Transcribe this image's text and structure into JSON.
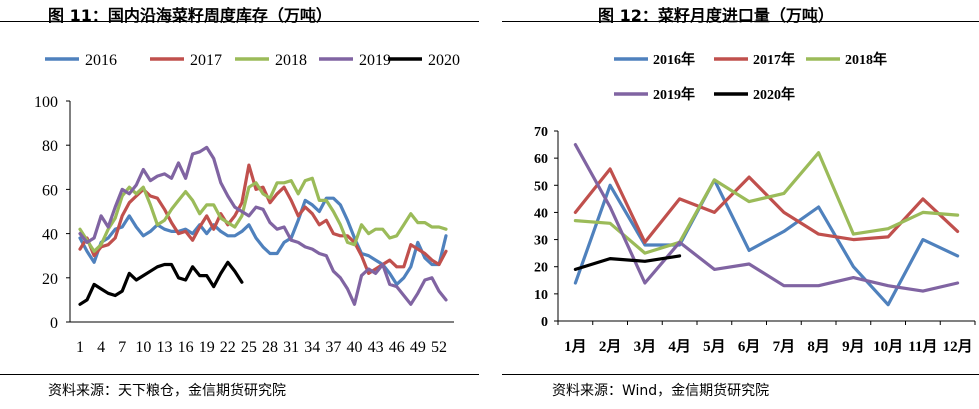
{
  "charts": [
    {
      "title": "图 11：国内沿海菜籽周度库存（万吨）",
      "source": "资料来源：天下粮仓，金信期货研究院"
    },
    {
      "title": "图 12：菜籽月度进口量（万吨）",
      "source": "资料来源：Wind，金信期货研究院"
    }
  ],
  "chart_data": [
    {
      "type": "line",
      "title": "",
      "xlabel": "",
      "ylabel": "",
      "ylim": [
        0,
        100
      ],
      "yticks": [
        0,
        20,
        40,
        60,
        80,
        100
      ],
      "x": [
        1,
        2,
        3,
        4,
        5,
        6,
        7,
        8,
        9,
        10,
        11,
        12,
        13,
        14,
        15,
        16,
        17,
        18,
        19,
        20,
        21,
        22,
        23,
        24,
        25,
        26,
        27,
        28,
        29,
        30,
        31,
        32,
        33,
        34,
        35,
        36,
        37,
        38,
        39,
        40,
        41,
        42,
        43,
        44,
        45,
        46,
        47,
        48,
        49,
        50,
        51,
        52,
        53
      ],
      "xtick_labels": [
        "1",
        "4",
        "7",
        "10",
        "13",
        "16",
        "19",
        "22",
        "25",
        "28",
        "31",
        "34",
        "37",
        "40",
        "43",
        "46",
        "49",
        "52"
      ],
      "grid": false,
      "legend": "top",
      "series": [
        {
          "name": "2016",
          "color": "#4f81bd",
          "values": [
            38,
            32,
            27,
            36,
            38,
            42,
            43,
            48,
            43,
            39,
            41,
            44,
            42,
            41,
            41,
            42,
            40,
            44,
            40,
            44,
            41,
            39,
            39,
            41,
            44,
            38,
            34,
            31,
            31,
            36,
            38,
            46,
            55,
            53,
            50,
            56,
            56,
            53,
            46,
            38,
            31,
            30,
            28,
            26,
            22,
            17,
            20,
            25,
            36,
            29,
            26,
            26,
            39
          ]
        },
        {
          "name": "2017",
          "color": "#c0504d",
          "values": [
            33,
            38,
            30,
            34,
            35,
            38,
            48,
            54,
            57,
            60,
            57,
            56,
            51,
            45,
            40,
            41,
            37,
            43,
            48,
            42,
            49,
            44,
            48,
            54,
            71,
            60,
            61,
            54,
            58,
            61,
            55,
            48,
            52,
            49,
            44,
            46,
            40,
            39,
            39,
            36,
            30,
            22,
            24,
            26,
            28,
            25,
            25,
            35,
            33,
            31,
            28,
            26,
            32
          ]
        },
        {
          "name": "2018",
          "color": "#9bbb59",
          "values": [
            42,
            37,
            32,
            35,
            42,
            47,
            57,
            61,
            58,
            61,
            53,
            44,
            46,
            51,
            55,
            59,
            55,
            49,
            53,
            53,
            47,
            45,
            43,
            48,
            61,
            63,
            58,
            56,
            63,
            63,
            64,
            58,
            64,
            65,
            55,
            55,
            50,
            44,
            36,
            35,
            44,
            40,
            42,
            42,
            38,
            39,
            44,
            49,
            45,
            45,
            43,
            43,
            42
          ]
        },
        {
          "name": "2019",
          "color": "#8064a2",
          "values": [
            40,
            36,
            38,
            48,
            43,
            52,
            60,
            58,
            62,
            69,
            64,
            66,
            67,
            65,
            72,
            65,
            76,
            77,
            79,
            74,
            63,
            57,
            52,
            50,
            48,
            52,
            51,
            45,
            42,
            43,
            37,
            36,
            34,
            33,
            31,
            30,
            23,
            20,
            15,
            8,
            21,
            24,
            22,
            26,
            17,
            16,
            12,
            8,
            13,
            19,
            20,
            14,
            10
          ]
        },
        {
          "name": "2020",
          "color": "#000000",
          "values": [
            8,
            10,
            17,
            15,
            13,
            12,
            14,
            22,
            19,
            21,
            23,
            25,
            26,
            26,
            20,
            19,
            25,
            21,
            21,
            16,
            22,
            27,
            23,
            18,
            null,
            null,
            null,
            null,
            null,
            null,
            null,
            null,
            null,
            null,
            null,
            null,
            null,
            null,
            null,
            null,
            null,
            null,
            null,
            null,
            null,
            null,
            null,
            null,
            null,
            null,
            null,
            null,
            null
          ]
        }
      ]
    },
    {
      "type": "line",
      "title": "",
      "xlabel": "",
      "ylabel": "",
      "ylim": [
        0,
        70
      ],
      "yticks": [
        0,
        10,
        20,
        30,
        40,
        50,
        60,
        70
      ],
      "categories": [
        "1月",
        "2月",
        "3月",
        "4月",
        "5月",
        "6月",
        "7月",
        "8月",
        "9月",
        "10月",
        "11月",
        "12月"
      ],
      "grid": false,
      "legend": "top",
      "series": [
        {
          "name": "2016年",
          "color": "#4f81bd",
          "values": [
            14,
            50,
            28,
            28,
            52,
            26,
            33,
            42,
            20,
            6,
            30,
            24
          ]
        },
        {
          "name": "2017年",
          "color": "#c0504d",
          "values": [
            40,
            56,
            29,
            45,
            40,
            53,
            40,
            32,
            30,
            31,
            45,
            33
          ]
        },
        {
          "name": "2018年",
          "color": "#9bbb59",
          "values": [
            37,
            36,
            25,
            29,
            52,
            44,
            47,
            62,
            32,
            34,
            40,
            39
          ]
        },
        {
          "name": "2019年",
          "color": "#8064a2",
          "values": [
            65,
            42,
            14,
            29,
            19,
            21,
            13,
            13,
            16,
            13,
            11,
            14
          ]
        },
        {
          "name": "2020年",
          "color": "#000000",
          "values": [
            19,
            23,
            22,
            24,
            null,
            null,
            null,
            null,
            null,
            null,
            null,
            null
          ]
        }
      ]
    }
  ]
}
